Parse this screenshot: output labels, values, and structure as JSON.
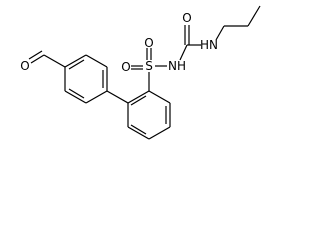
{
  "atoms": {
    "aldehyde_o": "O",
    "sulfonyl_o_left": "O",
    "sulfur": "S",
    "sulfonyl_o_top": "O",
    "sulfonamide_nh": "NH",
    "carbonyl_o": "O",
    "urea_nh": "HN"
  }
}
